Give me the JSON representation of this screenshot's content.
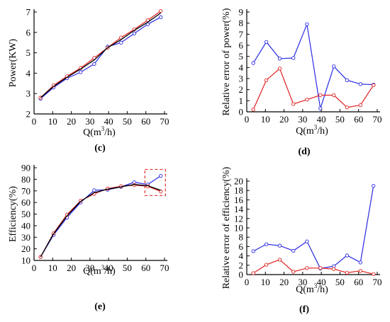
{
  "colors": {
    "blue": "#2a2ae6",
    "red": "#e02020",
    "black": "#000000",
    "highlight": "#e03030"
  },
  "chart_data": [
    {
      "panel": "c",
      "caption": "(c)",
      "type": "line",
      "xlabel": "Q(m³/h)",
      "ylabel": "Power(KW)",
      "xlim": [
        0,
        70
      ],
      "ylim": [
        2,
        7
      ],
      "xticks": [
        "0",
        "10",
        "20",
        "30",
        "40",
        "50",
        "60",
        "70"
      ],
      "yticks": [
        "2",
        "3",
        "4",
        "5",
        "6",
        "7"
      ],
      "series": [
        {
          "color": "blue",
          "marker": "circle",
          "x": [
            3.5,
            10.5,
            17.7,
            25,
            32.3,
            39.5,
            46.7,
            53.8,
            61,
            68
          ],
          "y": [
            2.75,
            3.3,
            3.75,
            4.05,
            4.45,
            5.3,
            5.5,
            5.95,
            6.4,
            6.75
          ]
        },
        {
          "color": "red",
          "marker": "circle",
          "x": [
            3.5,
            10.5,
            17.7,
            25,
            32.3,
            39.5,
            46.7,
            53.8,
            61,
            68
          ],
          "y": [
            2.8,
            3.4,
            3.85,
            4.25,
            4.75,
            5.25,
            5.75,
            6.15,
            6.6,
            7.05
          ]
        },
        {
          "color": "black",
          "marker": "none",
          "x": [
            3.5,
            10.5,
            17.7,
            25,
            32.3,
            39.5,
            46.7,
            53.8,
            61,
            68
          ],
          "y": [
            2.8,
            3.35,
            3.8,
            4.2,
            4.65,
            5.25,
            5.65,
            6.1,
            6.5,
            6.95
          ]
        }
      ]
    },
    {
      "panel": "d",
      "caption": "(d)",
      "type": "line",
      "xlabel": "Q(m³/h)",
      "ylabel": "Relative error of power(%)",
      "xlim": [
        0,
        70
      ],
      "ylim": [
        0,
        9
      ],
      "xticks": [
        "0",
        "10",
        "20",
        "30",
        "40",
        "50",
        "60",
        "70"
      ],
      "yticks": [
        "0",
        "1",
        "2",
        "3",
        "4",
        "5",
        "6",
        "7",
        "8",
        "9"
      ],
      "series": [
        {
          "color": "blue",
          "marker": "circle",
          "x": [
            3.5,
            10.5,
            17.7,
            25,
            32.3,
            39.5,
            46.7,
            53.8,
            61,
            68
          ],
          "y": [
            4.4,
            6.3,
            4.8,
            4.85,
            7.9,
            0.3,
            4.1,
            2.85,
            2.5,
            2.45
          ]
        },
        {
          "color": "red",
          "marker": "circle",
          "x": [
            3.5,
            10.5,
            17.7,
            25,
            32.3,
            39.5,
            46.7,
            53.8,
            61,
            68
          ],
          "y": [
            0.2,
            2.85,
            3.9,
            0.7,
            1.1,
            1.5,
            1.5,
            0.4,
            0.6,
            2.4
          ]
        }
      ]
    },
    {
      "panel": "e",
      "caption": "(e)",
      "type": "line",
      "xlabel": "Q(m³/h)",
      "ylabel": "Efficiency(%)",
      "xlim": [
        0,
        70
      ],
      "ylim": [
        10,
        90
      ],
      "xticks": [
        "0",
        "10",
        "20",
        "30",
        "40",
        "50",
        "60",
        "70"
      ],
      "yticks": [
        "10",
        "20",
        "30",
        "40",
        "50",
        "60",
        "70",
        "80",
        "90"
      ],
      "series": [
        {
          "color": "blue",
          "marker": "circle",
          "x": [
            3.5,
            10.5,
            17.7,
            25,
            32.3,
            39.5,
            46.7,
            53.8,
            61,
            68
          ],
          "y": [
            13,
            32,
            47,
            60,
            70.5,
            71,
            73.5,
            77.5,
            75.5,
            83
          ]
        },
        {
          "color": "red",
          "marker": "circle",
          "x": [
            3.5,
            10.5,
            17.7,
            25,
            32.3,
            39.5,
            46.7,
            53.8,
            61,
            68
          ],
          "y": [
            13,
            33.5,
            49.5,
            61.5,
            67.5,
            72,
            74,
            75,
            74,
            69.5
          ]
        },
        {
          "color": "black",
          "marker": "none",
          "x": [
            3.5,
            10.5,
            17.7,
            25,
            32.3,
            39.5,
            46.7,
            53.8,
            61,
            68
          ],
          "y": [
            13,
            33,
            48.5,
            61,
            68.5,
            71.5,
            73.5,
            75.5,
            74.5,
            70.5
          ]
        }
      ],
      "annotations": [
        "dashed box marking the last points (60–70 m³/h)"
      ]
    },
    {
      "panel": "f",
      "caption": "(f)",
      "type": "line",
      "xlabel": "Q(m³/h)",
      "ylabel": "Relative error of efficiency(%)",
      "xlim": [
        0,
        70
      ],
      "ylim": [
        0,
        20
      ],
      "xticks": [
        "0",
        "10",
        "20",
        "30",
        "40",
        "50",
        "60",
        "70"
      ],
      "yticks": [
        "0",
        "2",
        "4",
        "6",
        "8",
        "10",
        "12",
        "14",
        "16",
        "18",
        "20"
      ],
      "series": [
        {
          "color": "blue",
          "marker": "circle",
          "x": [
            3.5,
            10.5,
            17.7,
            25,
            32.3,
            39.5,
            46.7,
            53.8,
            61,
            68
          ],
          "y": [
            5,
            6.5,
            6.2,
            5.1,
            7.1,
            1.3,
            1.8,
            4.1,
            2.6,
            19
          ]
        },
        {
          "color": "red",
          "marker": "circle",
          "x": [
            3.5,
            10.5,
            17.7,
            25,
            32.3,
            39.5,
            46.7,
            53.8,
            61,
            68
          ],
          "y": [
            0.3,
            2.1,
            3.2,
            0.6,
            1.4,
            1.4,
            1.2,
            0.4,
            0.8,
            0.1
          ]
        }
      ]
    }
  ]
}
